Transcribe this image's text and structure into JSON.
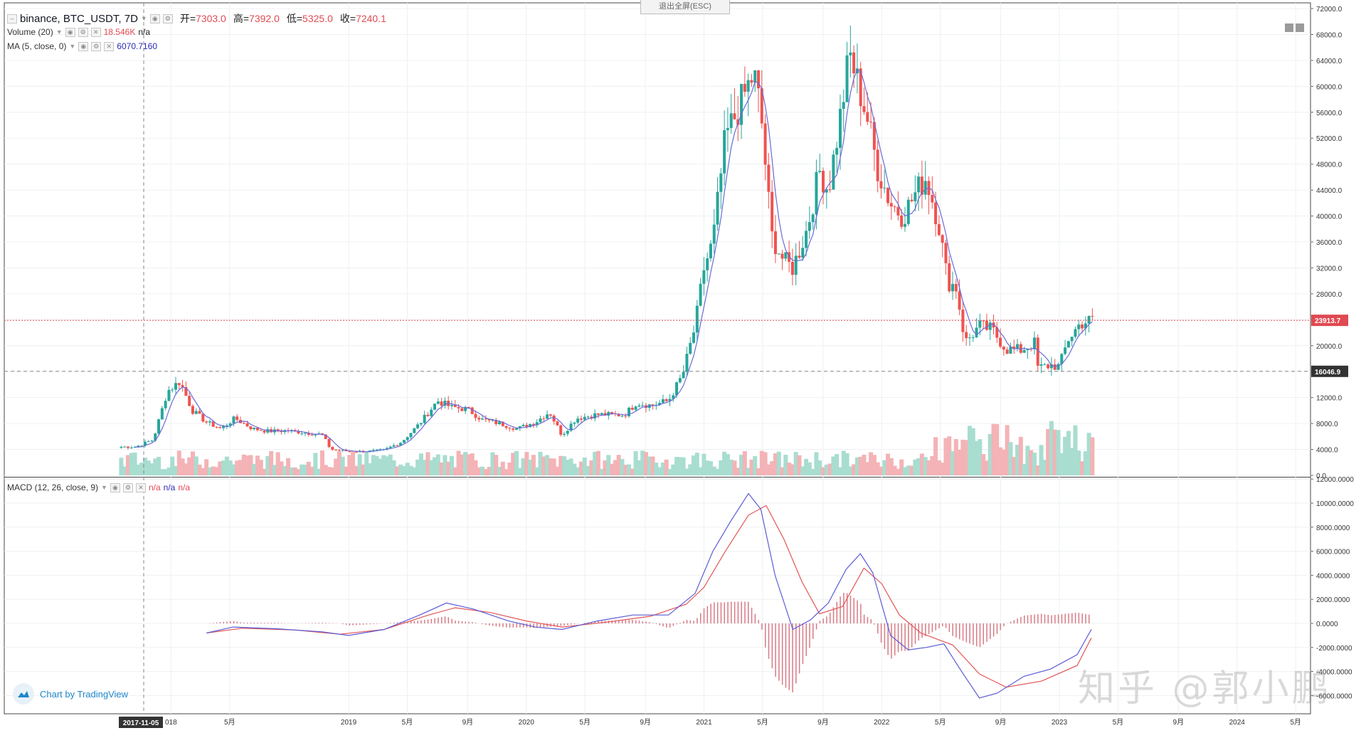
{
  "header": {
    "symbol": "binance, BTC_USDT, 7D",
    "open_label": "开=",
    "open": "7303.0",
    "high_label": "高=",
    "high": "7392.0",
    "low_label": "低=",
    "low": "5325.0",
    "close_label": "收=",
    "close": "7240.1"
  },
  "volume_legend": {
    "name": "Volume (20)",
    "value": "18.546K",
    "na": "n/a"
  },
  "ma_legend": {
    "name": "MA (5, close, 0)",
    "value": "6070.7160"
  },
  "macd_legend": {
    "name": "MACD (12, 26, close, 9)",
    "v1": "n/a",
    "v2": "n/a",
    "v3": "n/a"
  },
  "esc_tip": "退出全屏(ESC)",
  "brand": "Chart by TradingView",
  "watermark": "知乎 @郭小鹏",
  "colors": {
    "up": "#26a69a",
    "down": "#ef5350",
    "ma": "#6a6ad8",
    "macd": "#5b5bd6",
    "signal": "#e25555"
  },
  "price_labels": {
    "last": "23913.7",
    "crosshair": "16046.9"
  },
  "crosshair_date": "2017-11-05",
  "chart_data": [
    {
      "type": "candlestick",
      "title": "binance, BTC_USDT, 7D",
      "ylim": [
        0,
        72000
      ],
      "y_ticks": [
        "72000.0",
        "68000.0",
        "64000.0",
        "60000.0",
        "56000.0",
        "52000.0",
        "48000.0",
        "44000.0",
        "40000.0",
        "36000.0",
        "32000.0",
        "28000.0",
        "24000.0",
        "20000.0",
        "16000.0",
        "12000.0",
        "8000.0",
        "4000.0",
        "0.0"
      ],
      "x_ticks": [
        "2017-11-05",
        "018",
        "5月",
        "2019",
        "5月",
        "9月",
        "2020",
        "5月",
        "9月",
        "2021",
        "5月",
        "9月",
        "2022",
        "5月",
        "9月",
        "2023",
        "5月",
        "9月",
        "2024",
        "5月"
      ],
      "series": [
        {
          "name": "MA (5, close, 0)",
          "close_anchors": [
            [
              2017.8,
              4400
            ],
            [
              2017.9,
              5500
            ],
            [
              2017.98,
              13000
            ],
            [
              2018.05,
              14500
            ],
            [
              2018.12,
              10000
            ],
            [
              2018.2,
              8200
            ],
            [
              2018.28,
              7200
            ],
            [
              2018.36,
              8800
            ],
            [
              2018.46,
              7200
            ],
            [
              2018.55,
              6800
            ],
            [
              2018.65,
              6900
            ],
            [
              2018.75,
              6600
            ],
            [
              2018.85,
              6300
            ],
            [
              2018.9,
              4000
            ],
            [
              2019.0,
              3700
            ],
            [
              2019.1,
              3700
            ],
            [
              2019.2,
              3900
            ],
            [
              2019.3,
              5200
            ],
            [
              2019.4,
              8000
            ],
            [
              2019.5,
              11500
            ],
            [
              2019.58,
              10500
            ],
            [
              2019.67,
              10200
            ],
            [
              2019.75,
              8600
            ],
            [
              2019.85,
              8000
            ],
            [
              2019.95,
              7200
            ],
            [
              2020.05,
              8200
            ],
            [
              2020.13,
              9800
            ],
            [
              2020.2,
              6200
            ],
            [
              2020.28,
              8800
            ],
            [
              2020.4,
              9400
            ],
            [
              2020.55,
              9300
            ],
            [
              2020.62,
              11200
            ],
            [
              2020.7,
              10800
            ],
            [
              2020.8,
              11500
            ],
            [
              2020.88,
              15500
            ],
            [
              2020.95,
              23000
            ],
            [
              2021.0,
              32000
            ],
            [
              2021.05,
              36000
            ],
            [
              2021.12,
              52000
            ],
            [
              2021.2,
              57000
            ],
            [
              2021.28,
              62000
            ],
            [
              2021.32,
              56000
            ],
            [
              2021.38,
              37000
            ],
            [
              2021.45,
              33000
            ],
            [
              2021.5,
              32000
            ],
            [
              2021.58,
              38000
            ],
            [
              2021.65,
              47000
            ],
            [
              2021.7,
              44000
            ],
            [
              2021.76,
              54000
            ],
            [
              2021.82,
              65000
            ],
            [
              2021.86,
              61000
            ],
            [
              2021.92,
              55000
            ],
            [
              2021.98,
              47000
            ],
            [
              2022.05,
              42000
            ],
            [
              2022.12,
              40000
            ],
            [
              2022.2,
              44000
            ],
            [
              2022.25,
              46000
            ],
            [
              2022.32,
              39000
            ],
            [
              2022.37,
              30000
            ],
            [
              2022.42,
              29000
            ],
            [
              2022.47,
              20500
            ],
            [
              2022.55,
              23000
            ],
            [
              2022.62,
              22500
            ],
            [
              2022.7,
              19500
            ],
            [
              2022.78,
              19300
            ],
            [
              2022.86,
              20400
            ],
            [
              2022.88,
              16500
            ],
            [
              2022.95,
              17000
            ],
            [
              2023.0,
              16800
            ],
            [
              2023.05,
              21000
            ],
            [
              2023.12,
              23500
            ],
            [
              2023.18,
              23913
            ]
          ]
        },
        {
          "name": "Volume (20)",
          "last": "18.546K"
        }
      ],
      "price_lines": [
        23913.7,
        16046.9
      ]
    },
    {
      "type": "line",
      "title": "MACD (12, 26, close, 9)",
      "ylim": [
        -6000,
        12000
      ],
      "y_ticks": [
        "12000.0000",
        "10000.0000",
        "8000.0000",
        "6000.0000",
        "4000.0000",
        "2000.0000",
        "0.0000",
        "-2000.0000",
        "-4000.0000",
        "-6000.0000"
      ],
      "series": [
        {
          "name": "MACD",
          "points": [
            [
              2018.2,
              -800
            ],
            [
              2018.35,
              -300
            ],
            [
              2018.6,
              -450
            ],
            [
              2018.85,
              -700
            ],
            [
              2019.0,
              -1000
            ],
            [
              2019.2,
              -500
            ],
            [
              2019.4,
              700
            ],
            [
              2019.55,
              1700
            ],
            [
              2019.7,
              1200
            ],
            [
              2019.9,
              200
            ],
            [
              2020.05,
              -300
            ],
            [
              2020.2,
              -500
            ],
            [
              2020.4,
              200
            ],
            [
              2020.6,
              700
            ],
            [
              2020.8,
              700
            ],
            [
              2020.95,
              2500
            ],
            [
              2021.05,
              6000
            ],
            [
              2021.15,
              8500
            ],
            [
              2021.25,
              10800
            ],
            [
              2021.32,
              9500
            ],
            [
              2021.4,
              4000
            ],
            [
              2021.5,
              -500
            ],
            [
              2021.6,
              300
            ],
            [
              2021.7,
              1700
            ],
            [
              2021.8,
              4500
            ],
            [
              2021.88,
              5800
            ],
            [
              2021.95,
              4200
            ],
            [
              2022.05,
              -1000
            ],
            [
              2022.15,
              -2200
            ],
            [
              2022.25,
              -2000
            ],
            [
              2022.35,
              -1700
            ],
            [
              2022.45,
              -4000
            ],
            [
              2022.55,
              -6200
            ],
            [
              2022.65,
              -5800
            ],
            [
              2022.8,
              -4400
            ],
            [
              2022.95,
              -3800
            ],
            [
              2023.1,
              -2600
            ],
            [
              2023.18,
              -500
            ]
          ]
        },
        {
          "name": "Signal",
          "points": [
            [
              2018.2,
              -800
            ],
            [
              2018.4,
              -400
            ],
            [
              2018.7,
              -550
            ],
            [
              2018.95,
              -900
            ],
            [
              2019.2,
              -500
            ],
            [
              2019.45,
              700
            ],
            [
              2019.6,
              1300
            ],
            [
              2019.8,
              900
            ],
            [
              2020.0,
              200
            ],
            [
              2020.2,
              -300
            ],
            [
              2020.45,
              100
            ],
            [
              2020.7,
              600
            ],
            [
              2020.9,
              1600
            ],
            [
              2021.0,
              3000
            ],
            [
              2021.12,
              6000
            ],
            [
              2021.25,
              9000
            ],
            [
              2021.35,
              9800
            ],
            [
              2021.45,
              7000
            ],
            [
              2021.55,
              3500
            ],
            [
              2021.65,
              800
            ],
            [
              2021.78,
              1400
            ],
            [
              2021.9,
              4600
            ],
            [
              2022.0,
              3300
            ],
            [
              2022.1,
              700
            ],
            [
              2022.22,
              -800
            ],
            [
              2022.4,
              -1800
            ],
            [
              2022.55,
              -4200
            ],
            [
              2022.7,
              -5300
            ],
            [
              2022.9,
              -4800
            ],
            [
              2023.1,
              -3500
            ],
            [
              2023.18,
              -1200
            ]
          ]
        }
      ]
    }
  ]
}
